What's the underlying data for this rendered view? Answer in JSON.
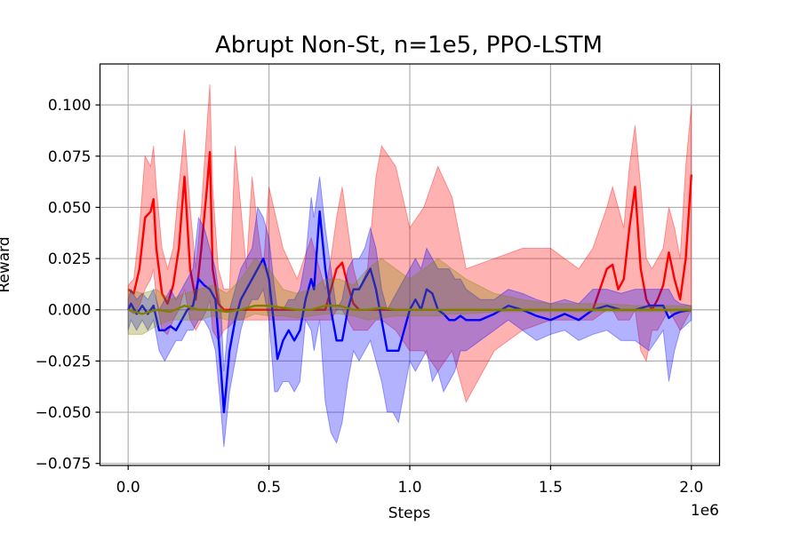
{
  "chart_data": {
    "type": "line",
    "title": "Abrupt Non-St, n=1e5, PPO-LSTM",
    "xlabel": "Steps",
    "ylabel": "Reward",
    "x_offset_text": "1e6",
    "xlim": [
      -0.1,
      2.1
    ],
    "ylim": [
      -0.076,
      0.12
    ],
    "xticks": [
      0.0,
      0.5,
      1.0,
      1.5,
      2.0
    ],
    "xtick_labels": [
      "0.0",
      "0.5",
      "1.0",
      "1.5",
      "2.0"
    ],
    "yticks": [
      -0.075,
      -0.05,
      -0.025,
      0.0,
      0.025,
      0.05,
      0.075,
      0.1
    ],
    "ytick_labels": [
      "−0.075",
      "−0.050",
      "−0.025",
      "0.000",
      "0.025",
      "0.050",
      "0.075",
      "0.100"
    ],
    "grid": true,
    "legend": "none",
    "series": [
      {
        "color": "#ff0000",
        "band_opacity": 0.3,
        "x": [
          0.0,
          0.02,
          0.04,
          0.06,
          0.08,
          0.09,
          0.1,
          0.12,
          0.14,
          0.16,
          0.18,
          0.2,
          0.22,
          0.24,
          0.26,
          0.28,
          0.29,
          0.3,
          0.32,
          0.34,
          0.36,
          0.38,
          0.4,
          0.42,
          0.44,
          0.46,
          0.48,
          0.5,
          0.55,
          0.6,
          0.65,
          0.7,
          0.72,
          0.74,
          0.76,
          0.78,
          0.8,
          0.82,
          0.85,
          0.88,
          0.9,
          0.95,
          1.0,
          1.05,
          1.1,
          1.15,
          1.2,
          1.3,
          1.4,
          1.5,
          1.6,
          1.65,
          1.7,
          1.72,
          1.74,
          1.76,
          1.78,
          1.8,
          1.82,
          1.84,
          1.86,
          1.88,
          1.9,
          1.92,
          1.94,
          1.96,
          1.98,
          2.0
        ],
        "y": [
          0.01,
          0.008,
          0.02,
          0.045,
          0.048,
          0.054,
          0.03,
          0.008,
          0.003,
          0.012,
          0.03,
          0.065,
          0.02,
          0.005,
          0.03,
          0.06,
          0.077,
          0.02,
          0.003,
          0.0,
          0.0,
          0.0,
          0.0,
          0.0,
          0.0,
          0.0,
          0.0,
          0.0,
          0.0,
          0.0,
          0.0,
          0.0,
          0.01,
          0.02,
          0.023,
          0.012,
          0.003,
          0.0,
          0.0,
          0.0,
          0.0,
          0.0,
          0.0,
          0.0,
          0.0,
          0.0,
          0.0,
          0.0,
          0.0,
          0.0,
          0.0,
          0.0,
          0.02,
          0.022,
          0.01,
          0.015,
          0.04,
          0.06,
          0.02,
          0.005,
          0.0,
          0.005,
          0.012,
          0.028,
          0.015,
          0.005,
          0.025,
          0.066
        ],
        "lower": [
          0.0,
          -0.002,
          0.002,
          0.01,
          0.015,
          0.02,
          0.005,
          -0.01,
          -0.012,
          -0.005,
          0.0,
          0.01,
          -0.005,
          -0.01,
          -0.005,
          0.0,
          0.005,
          -0.01,
          -0.015,
          -0.01,
          -0.008,
          -0.005,
          -0.005,
          -0.005,
          -0.005,
          -0.005,
          -0.005,
          -0.005,
          -0.005,
          -0.005,
          -0.005,
          -0.005,
          -0.005,
          0.0,
          0.0,
          -0.005,
          -0.01,
          -0.01,
          -0.01,
          -0.005,
          -0.005,
          -0.01,
          -0.02,
          -0.02,
          -0.03,
          -0.02,
          -0.045,
          -0.02,
          -0.01,
          -0.005,
          -0.005,
          -0.005,
          0.0,
          0.0,
          -0.005,
          -0.005,
          -0.005,
          0.0,
          -0.02,
          -0.025,
          -0.01,
          -0.01,
          -0.005,
          0.0,
          -0.005,
          -0.01,
          -0.005,
          0.0
        ],
        "upper": [
          0.012,
          0.015,
          0.04,
          0.075,
          0.07,
          0.08,
          0.06,
          0.03,
          0.02,
          0.03,
          0.06,
          0.088,
          0.05,
          0.02,
          0.05,
          0.09,
          0.11,
          0.06,
          0.02,
          0.01,
          0.01,
          0.08,
          0.05,
          0.02,
          0.065,
          0.04,
          0.02,
          0.06,
          0.03,
          0.015,
          0.035,
          0.01,
          0.025,
          0.045,
          0.06,
          0.04,
          0.02,
          0.01,
          0.02,
          0.065,
          0.08,
          0.07,
          0.04,
          0.05,
          0.07,
          0.055,
          0.02,
          0.025,
          0.03,
          0.03,
          0.02,
          0.03,
          0.05,
          0.06,
          0.05,
          0.04,
          0.07,
          0.09,
          0.06,
          0.025,
          0.02,
          0.025,
          0.03,
          0.05,
          0.04,
          0.025,
          0.07,
          0.1
        ]
      },
      {
        "color": "#0000ff",
        "band_opacity": 0.3,
        "x": [
          0.0,
          0.01,
          0.03,
          0.05,
          0.07,
          0.09,
          0.11,
          0.13,
          0.15,
          0.17,
          0.19,
          0.21,
          0.23,
          0.25,
          0.27,
          0.29,
          0.31,
          0.33,
          0.34,
          0.36,
          0.38,
          0.4,
          0.42,
          0.44,
          0.46,
          0.48,
          0.5,
          0.52,
          0.53,
          0.55,
          0.57,
          0.59,
          0.61,
          0.63,
          0.65,
          0.66,
          0.68,
          0.7,
          0.72,
          0.74,
          0.76,
          0.78,
          0.8,
          0.82,
          0.84,
          0.86,
          0.88,
          0.9,
          0.92,
          0.94,
          0.96,
          0.98,
          1.0,
          1.02,
          1.04,
          1.06,
          1.08,
          1.1,
          1.12,
          1.14,
          1.16,
          1.18,
          1.2,
          1.25,
          1.3,
          1.35,
          1.4,
          1.45,
          1.5,
          1.55,
          1.6,
          1.65,
          1.7,
          1.75,
          1.8,
          1.85,
          1.9,
          1.92,
          1.94,
          1.96,
          2.0
        ],
        "y": [
          0.0,
          0.003,
          -0.002,
          0.002,
          -0.002,
          0.002,
          -0.01,
          -0.01,
          -0.008,
          -0.01,
          -0.005,
          0.0,
          0.002,
          0.015,
          0.012,
          0.01,
          0.005,
          -0.03,
          -0.05,
          -0.02,
          -0.005,
          0.005,
          0.01,
          0.015,
          0.02,
          0.025,
          0.015,
          -0.01,
          -0.024,
          -0.015,
          -0.01,
          -0.015,
          -0.01,
          0.005,
          0.015,
          0.01,
          0.048,
          0.02,
          0.0,
          -0.015,
          -0.015,
          0.0,
          0.01,
          0.01,
          0.015,
          0.02,
          0.01,
          -0.005,
          -0.02,
          -0.02,
          -0.02,
          -0.01,
          0.0,
          0.005,
          0.0,
          0.01,
          0.008,
          0.0,
          -0.002,
          -0.005,
          -0.005,
          -0.003,
          -0.005,
          -0.005,
          -0.002,
          0.002,
          0.0,
          -0.003,
          -0.005,
          -0.002,
          -0.005,
          0.0,
          0.002,
          0.0,
          0.0,
          0.002,
          0.002,
          -0.004,
          -0.002,
          -0.001,
          0.0
        ],
        "lower": [
          -0.01,
          -0.005,
          -0.01,
          -0.005,
          -0.01,
          -0.005,
          -0.02,
          -0.025,
          -0.02,
          -0.015,
          -0.015,
          -0.01,
          -0.01,
          -0.005,
          -0.005,
          -0.01,
          -0.02,
          -0.05,
          -0.067,
          -0.04,
          -0.025,
          -0.01,
          0.0,
          0.005,
          0.005,
          0.01,
          -0.005,
          -0.04,
          -0.04,
          -0.035,
          -0.035,
          -0.04,
          -0.035,
          -0.005,
          -0.01,
          -0.02,
          -0.005,
          -0.045,
          -0.06,
          -0.065,
          -0.055,
          -0.035,
          -0.02,
          -0.025,
          -0.02,
          -0.015,
          -0.025,
          -0.035,
          -0.05,
          -0.05,
          -0.055,
          -0.04,
          -0.025,
          -0.03,
          -0.025,
          -0.02,
          -0.035,
          -0.03,
          -0.04,
          -0.035,
          -0.03,
          -0.02,
          -0.02,
          -0.015,
          -0.01,
          -0.005,
          -0.01,
          -0.015,
          -0.012,
          -0.01,
          -0.015,
          -0.012,
          -0.01,
          -0.015,
          -0.015,
          -0.02,
          -0.01,
          -0.035,
          -0.02,
          -0.01,
          -0.005
        ],
        "upper": [
          0.005,
          0.01,
          0.005,
          0.008,
          0.005,
          0.01,
          0.0,
          0.005,
          0.01,
          0.005,
          0.01,
          0.015,
          0.02,
          0.045,
          0.04,
          0.03,
          0.02,
          0.0,
          -0.03,
          0.0,
          0.01,
          0.02,
          0.025,
          0.03,
          0.05,
          0.045,
          0.035,
          0.01,
          0.0,
          0.0,
          0.005,
          0.005,
          0.01,
          0.025,
          0.055,
          0.045,
          0.065,
          0.04,
          0.02,
          0.0,
          0.005,
          0.02,
          0.025,
          0.025,
          0.03,
          0.04,
          0.03,
          0.01,
          0.0,
          0.005,
          0.01,
          0.015,
          0.02,
          0.025,
          0.02,
          0.03,
          0.025,
          0.02,
          0.02,
          0.02,
          0.015,
          0.015,
          0.01,
          0.005,
          0.005,
          0.01,
          0.008,
          0.005,
          0.003,
          0.005,
          0.003,
          0.01,
          0.01,
          0.008,
          0.01,
          0.01,
          0.01,
          0.01,
          0.005,
          0.003,
          0.002
        ]
      },
      {
        "color": "#808000",
        "band_opacity": 0.3,
        "x": [
          0.0,
          0.05,
          0.1,
          0.15,
          0.2,
          0.25,
          0.3,
          0.35,
          0.4,
          0.45,
          0.5,
          0.55,
          0.6,
          0.65,
          0.7,
          0.75,
          0.8,
          0.85,
          0.9,
          0.95,
          1.0,
          1.05,
          1.1,
          1.15,
          1.2,
          1.3,
          1.4,
          1.5,
          1.6,
          1.7,
          1.8,
          1.9,
          2.0
        ],
        "y": [
          0.0,
          -0.002,
          0.0,
          -0.001,
          0.002,
          0.0,
          0.0,
          -0.001,
          0.0,
          0.002,
          0.002,
          0.001,
          0.0,
          0.0,
          0.002,
          0.002,
          0.0,
          0.0,
          0.001,
          0.0,
          0.0,
          0.0,
          0.0,
          0.0,
          0.0,
          0.0,
          0.0,
          0.0,
          0.0,
          0.0,
          0.0,
          0.0,
          0.0
        ],
        "lower": [
          -0.012,
          -0.012,
          -0.008,
          -0.005,
          -0.005,
          -0.005,
          -0.003,
          -0.005,
          -0.005,
          -0.002,
          -0.003,
          -0.003,
          -0.004,
          -0.003,
          -0.002,
          -0.002,
          -0.003,
          -0.005,
          -0.004,
          -0.003,
          -0.003,
          -0.003,
          -0.003,
          -0.002,
          -0.002,
          -0.001,
          -0.001,
          -0.001,
          -0.001,
          -0.001,
          -0.001,
          -0.001,
          -0.001
        ],
        "upper": [
          0.01,
          0.008,
          0.01,
          0.005,
          0.008,
          0.01,
          0.012,
          0.008,
          0.015,
          0.025,
          0.02,
          0.01,
          0.008,
          0.01,
          0.015,
          0.015,
          0.012,
          0.02,
          0.025,
          0.02,
          0.015,
          0.02,
          0.025,
          0.02,
          0.015,
          0.008,
          0.005,
          0.003,
          0.003,
          0.003,
          0.002,
          0.002,
          0.002
        ]
      }
    ]
  }
}
